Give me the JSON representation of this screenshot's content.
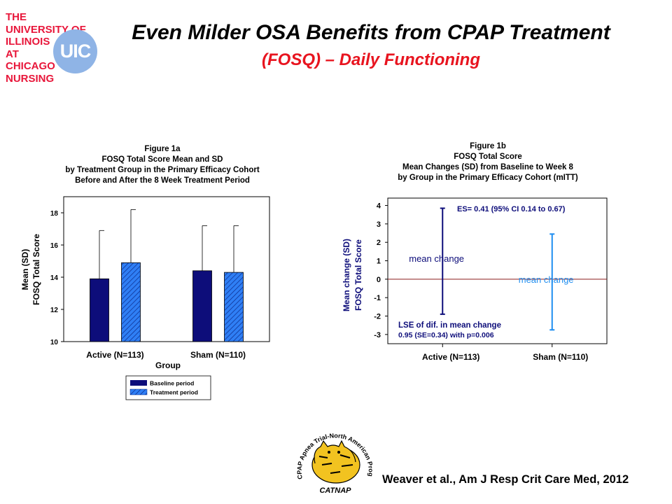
{
  "logo": {
    "lines": [
      "THE",
      "UNIVERSITY OF",
      "ILLINOIS",
      "AT",
      "CHICAGO",
      "NURSING"
    ],
    "badge": "UIC",
    "text_color": "#e8163a",
    "badge_color": "#8fb4e6"
  },
  "slide": {
    "title": "Even Milder OSA Benefits from CPAP Treatment",
    "subtitle": "(FOSQ) – Daily Functioning",
    "subtitle_color": "#e8141f",
    "citation": "Weaver et al., Am J Resp Crit Care Med, 2012"
  },
  "catnap": {
    "arc_text": "CPAP Apnea Trial-North American Program",
    "name": "CATNAP"
  },
  "chart_data": [
    {
      "type": "bar",
      "title_lines": [
        "Figure 1a",
        "FOSQ Total Score Mean and SD",
        "by Treatment Group in the Primary Efficacy Cohort",
        "Before and After the 8 Week Treatment Period"
      ],
      "ylabel_lines": [
        "Mean (SD)",
        "FOSQ Total Score"
      ],
      "xlabel": "Group",
      "categories": [
        "Active (N=113)",
        "Sham (N=110)"
      ],
      "ylim": [
        10,
        19
      ],
      "yticks": [
        10,
        12,
        14,
        16,
        18
      ],
      "series": [
        {
          "name": "Baseline period",
          "values": [
            13.9,
            14.4
          ],
          "sd": [
            3.0,
            2.8
          ],
          "fill": "solid",
          "color": "#0d0d7a"
        },
        {
          "name": "Treatment period",
          "values": [
            14.9,
            14.3
          ],
          "sd": [
            3.3,
            2.9
          ],
          "fill": "hatched",
          "color": "#2f7ff5"
        }
      ],
      "legend_position": "bottom-center"
    },
    {
      "type": "errorbar",
      "title_lines": [
        "Figure 1b",
        "FOSQ Total Score",
        "Mean Changes (SD) from Baseline to Week 8",
        "by Group in the Primary Efficacy Cohort (mITT)"
      ],
      "ylabel_lines": [
        "Mean change (SD)",
        "FOSQ Total Score"
      ],
      "categories": [
        "Active (N=113)",
        "Sham (N=110)"
      ],
      "ylim": [
        -3.5,
        4.4
      ],
      "yticks": [
        -3,
        -2,
        -1,
        0,
        1,
        2,
        3,
        4
      ],
      "series": [
        {
          "name": "Active (N=113)",
          "low": -1.9,
          "high": 3.85,
          "label": "mean change",
          "color": "#0d0d7a"
        },
        {
          "name": "Sham (N=110)",
          "low": -2.75,
          "high": 2.45,
          "label": "mean change",
          "color": "#1f8ef0"
        }
      ],
      "reference_line": {
        "y": 0,
        "color": "#8b1a1a"
      },
      "annotations": {
        "effect_size": "ES= 0.41 (95% CI 0.14 to 0.67)",
        "lse_line1": "LSE of dif. in mean change",
        "lse_line2": "0.95 (SE=0.34) with p=0.006"
      }
    }
  ]
}
